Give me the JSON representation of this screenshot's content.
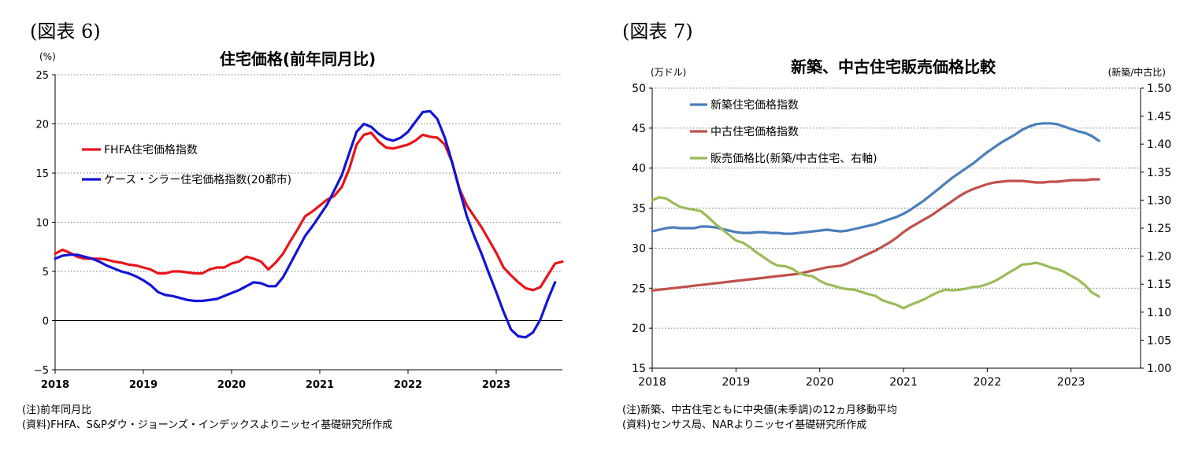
{
  "chart_data": [
    {
      "type": "line",
      "figure_label": "(図表 6)",
      "title": "住宅価格(前年同月比)",
      "unit_label": "(%)",
      "ylim": [
        -5,
        25
      ],
      "yticks": [
        "25",
        "20",
        "15",
        "10",
        "5",
        "0",
        "−5"
      ],
      "ytick_values": [
        25,
        20,
        15,
        10,
        5,
        0,
        -5
      ],
      "xticks": [
        "2018",
        "2019",
        "2020",
        "2021",
        "2022",
        "2023"
      ],
      "xtick_values": [
        2018,
        2019,
        2020,
        2021,
        2022,
        2023
      ],
      "xlim": [
        2018,
        2023.75
      ],
      "grid": true,
      "legend_position": "upper-left",
      "series": [
        {
          "name": "FHFA住宅価格指数",
          "color": "#e8141b",
          "x_start": 2018.0,
          "x_step_months": 1,
          "values": [
            6.8,
            7.2,
            6.9,
            6.5,
            6.3,
            6.3,
            6.3,
            6.2,
            6.0,
            5.9,
            5.7,
            5.6,
            5.4,
            5.2,
            4.8,
            4.8,
            5.0,
            5.0,
            4.9,
            4.8,
            4.8,
            5.2,
            5.4,
            5.4,
            5.8,
            6.0,
            6.5,
            6.3,
            6.0,
            5.2,
            5.9,
            6.8,
            8.1,
            9.3,
            10.6,
            11.1,
            11.7,
            12.3,
            12.7,
            13.6,
            15.4,
            17.9,
            18.9,
            19.1,
            18.2,
            17.6,
            17.5,
            17.7,
            17.9,
            18.3,
            18.9,
            18.7,
            18.6,
            17.9,
            16.1,
            13.4,
            11.7,
            10.6,
            9.5,
            8.2,
            6.9,
            5.4,
            4.6,
            3.9,
            3.3,
            3.1,
            3.4,
            4.6,
            5.8,
            6.0
          ]
        },
        {
          "name": "ケース・シラー住宅価格指数(20都市)",
          "color": "#1414d6",
          "x_start": 2018.0,
          "x_step_months": 1,
          "values": [
            6.3,
            6.6,
            6.7,
            6.7,
            6.5,
            6.3,
            6.0,
            5.6,
            5.3,
            5.0,
            4.8,
            4.5,
            4.1,
            3.6,
            2.9,
            2.6,
            2.5,
            2.3,
            2.1,
            2.0,
            2.0,
            2.1,
            2.2,
            2.5,
            2.8,
            3.1,
            3.5,
            3.9,
            3.8,
            3.5,
            3.5,
            4.4,
            5.8,
            7.2,
            8.6,
            9.6,
            10.7,
            11.8,
            13.3,
            14.8,
            17.0,
            19.2,
            20.0,
            19.7,
            19.0,
            18.5,
            18.3,
            18.6,
            19.2,
            20.2,
            21.2,
            21.3,
            20.5,
            18.6,
            16.1,
            13.3,
            10.6,
            8.6,
            6.8,
            4.8,
            2.9,
            0.9,
            -0.9,
            -1.6,
            -1.7,
            -1.2,
            0.1,
            2.1,
            3.9
          ]
        }
      ],
      "notes": [
        "(注)前年同月比",
        "(資料)FHFA、S&Pダウ・ジョーンズ・インデックスよりニッセイ基礎研究所作成"
      ]
    },
    {
      "type": "line",
      "figure_label": "(図表 7)",
      "title": "新築、中古住宅販売価格比較",
      "unit_label_left": "(万ドル)",
      "unit_label_right": "(新築/中古比)",
      "ylim": [
        15,
        50
      ],
      "yticks": [
        "50",
        "45",
        "40",
        "35",
        "30",
        "25",
        "20",
        "15"
      ],
      "ytick_values": [
        50,
        45,
        40,
        35,
        30,
        25,
        20,
        15
      ],
      "y2lim": [
        1.0,
        1.5
      ],
      "y2ticks": [
        "1.50",
        "1.45",
        "1.40",
        "1.35",
        "1.30",
        "1.25",
        "1.20",
        "1.15",
        "1.10",
        "1.05",
        "1.00"
      ],
      "y2tick_values": [
        1.5,
        1.45,
        1.4,
        1.35,
        1.3,
        1.25,
        1.2,
        1.15,
        1.1,
        1.05,
        1.0
      ],
      "xticks": [
        "2018",
        "2019",
        "2020",
        "2021",
        "2022",
        "2023"
      ],
      "xtick_values": [
        2018,
        2019,
        2020,
        2021,
        2022,
        2023
      ],
      "xlim": [
        2018,
        2023.83
      ],
      "grid": true,
      "legend_position": "upper-left",
      "series": [
        {
          "name": "新築住宅価格指数",
          "axis": "left",
          "color": "#4a7ebb",
          "x_start": 2018.0,
          "x_step_months": 1,
          "values": [
            32.1,
            32.3,
            32.5,
            32.6,
            32.5,
            32.5,
            32.5,
            32.7,
            32.7,
            32.6,
            32.4,
            32.2,
            32.0,
            31.9,
            31.9,
            32.0,
            32.0,
            31.9,
            31.9,
            31.8,
            31.8,
            31.9,
            32.0,
            32.1,
            32.2,
            32.3,
            32.2,
            32.1,
            32.2,
            32.4,
            32.6,
            32.8,
            33.0,
            33.3,
            33.6,
            33.9,
            34.3,
            34.8,
            35.4,
            36.0,
            36.7,
            37.4,
            38.1,
            38.8,
            39.4,
            40.0,
            40.6,
            41.3,
            42.0,
            42.6,
            43.2,
            43.7,
            44.2,
            44.8,
            45.2,
            45.5,
            45.6,
            45.6,
            45.5,
            45.2,
            44.9,
            44.6,
            44.4,
            44.0,
            43.4
          ]
        },
        {
          "name": "中古住宅価格指数",
          "axis": "left",
          "color": "#c0504d",
          "x_start": 2018.0,
          "x_step_months": 1,
          "values": [
            24.7,
            24.8,
            24.9,
            25.0,
            25.1,
            25.2,
            25.3,
            25.4,
            25.5,
            25.6,
            25.7,
            25.8,
            25.9,
            26.0,
            26.1,
            26.2,
            26.3,
            26.4,
            26.5,
            26.6,
            26.7,
            26.8,
            27.0,
            27.2,
            27.4,
            27.6,
            27.7,
            27.8,
            28.1,
            28.5,
            28.9,
            29.3,
            29.7,
            30.2,
            30.7,
            31.3,
            32.0,
            32.6,
            33.1,
            33.6,
            34.1,
            34.7,
            35.3,
            35.9,
            36.5,
            37.0,
            37.4,
            37.7,
            38.0,
            38.2,
            38.3,
            38.4,
            38.4,
            38.4,
            38.3,
            38.2,
            38.2,
            38.3,
            38.3,
            38.4,
            38.5,
            38.5,
            38.5,
            38.6,
            38.6
          ]
        },
        {
          "name": "販売価格比(新築/中古住宅、右軸)",
          "axis": "right",
          "color": "#9bbb59",
          "x_start": 2018.0,
          "x_step_months": 1,
          "values": [
            1.3,
            1.305,
            1.303,
            1.295,
            1.288,
            1.285,
            1.283,
            1.28,
            1.27,
            1.258,
            1.248,
            1.238,
            1.228,
            1.224,
            1.216,
            1.206,
            1.198,
            1.189,
            1.183,
            1.182,
            1.178,
            1.17,
            1.166,
            1.164,
            1.156,
            1.15,
            1.147,
            1.143,
            1.141,
            1.14,
            1.136,
            1.132,
            1.129,
            1.121,
            1.117,
            1.113,
            1.107,
            1.113,
            1.118,
            1.123,
            1.13,
            1.136,
            1.14,
            1.139,
            1.14,
            1.142,
            1.145,
            1.146,
            1.15,
            1.155,
            1.162,
            1.17,
            1.177,
            1.185,
            1.186,
            1.188,
            1.185,
            1.18,
            1.177,
            1.172,
            1.165,
            1.158,
            1.148,
            1.135,
            1.128
          ]
        }
      ],
      "notes": [
        "(注)新築、中古住宅ともに中央値(未季調)の12ヵ月移動平均",
        "(資料)センサス局、NARよりニッセイ基礎研究所作成"
      ]
    }
  ]
}
